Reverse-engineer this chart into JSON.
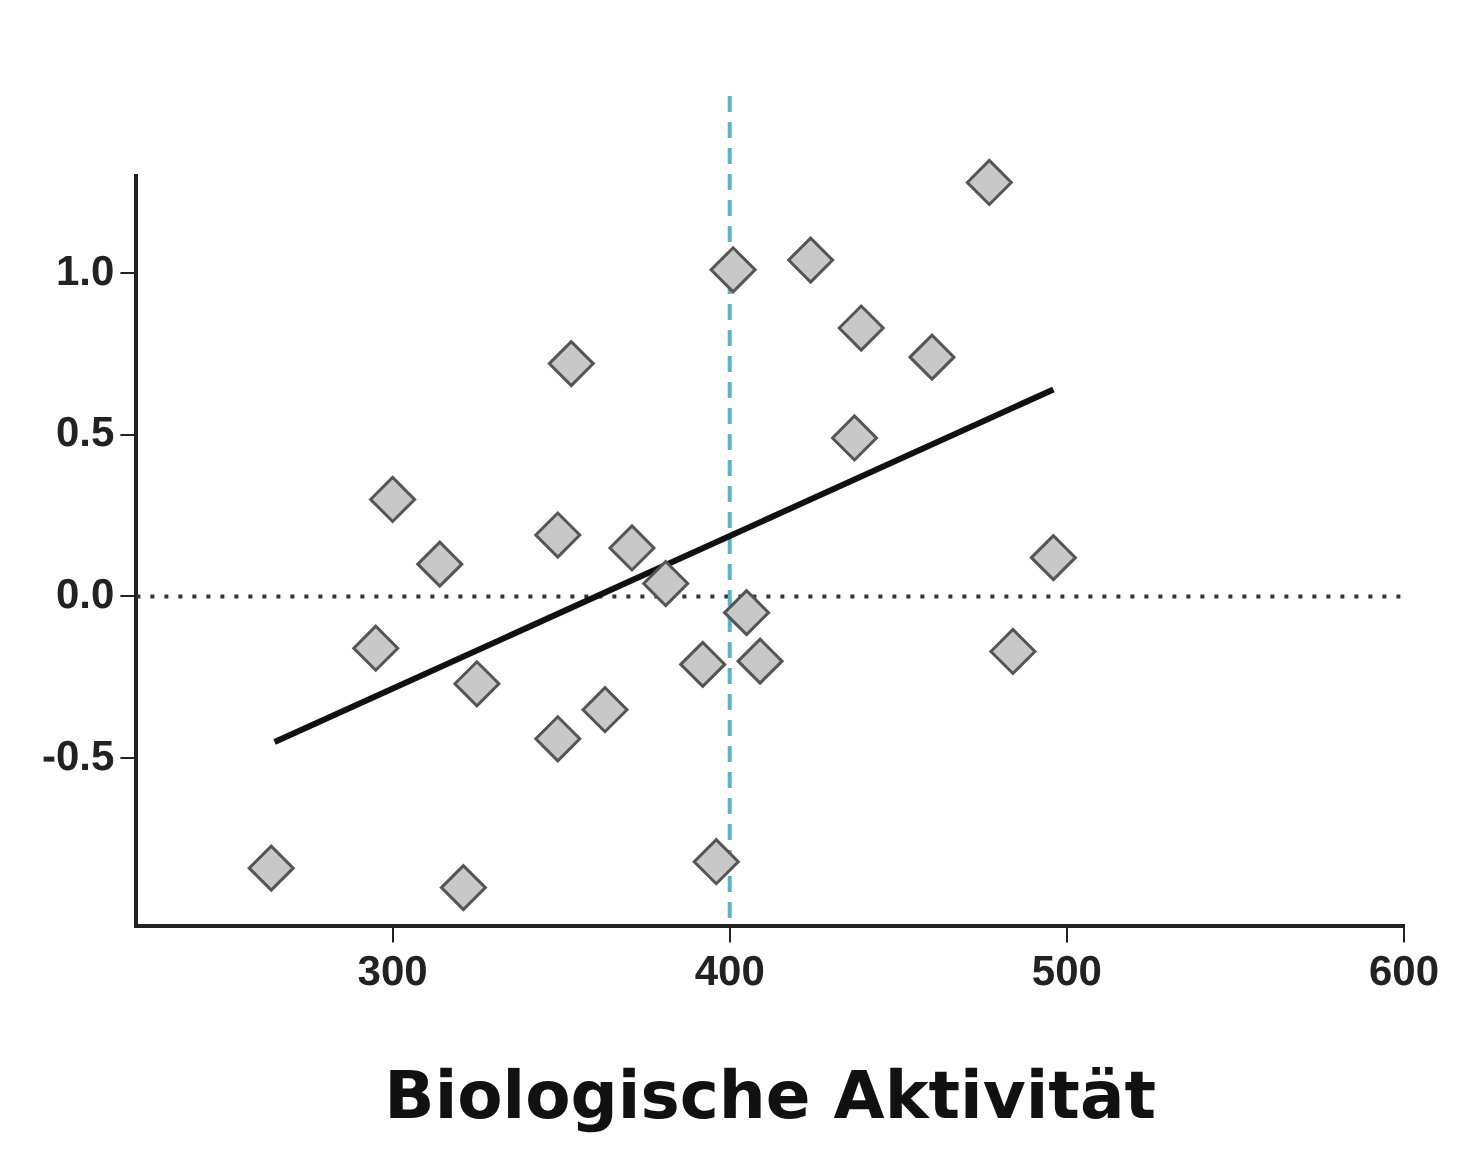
{
  "chart_data": {
    "type": "scatter",
    "xlabel": "Biologische Aktivität",
    "xlim": [
      224,
      600
    ],
    "ylim": [
      -1.02,
      1.3
    ],
    "xticks": [
      300,
      400,
      500,
      600
    ],
    "yticks": [
      {
        "value": -0.5,
        "label": "-0.5"
      },
      {
        "value": 0,
        "label": "0.0"
      },
      {
        "value": 0.5,
        "label": "0.5"
      },
      {
        "value": 1,
        "label": "1.0"
      }
    ],
    "grid": false,
    "legend": false,
    "marker": "diamond",
    "series": [
      {
        "color": "#c8c8c8",
        "x": [
          264,
          321,
          295,
          300,
          314,
          325,
          349,
          349,
          353,
          363,
          371,
          381,
          392,
          396,
          401,
          405,
          409,
          424,
          439,
          437,
          460,
          477,
          484,
          496
        ],
        "values": [
          -0.84,
          -0.9,
          -0.16,
          0.3,
          0.1,
          -0.27,
          0.19,
          -0.44,
          0.72,
          -0.35,
          0.15,
          0.04,
          -0.21,
          -0.82,
          1.01,
          -0.05,
          -0.2,
          1.04,
          0.83,
          0.49,
          0.74,
          1.28,
          -0.17,
          0.12
        ]
      },
      {
        "type": "line",
        "marker": "none",
        "color": "#111111",
        "x": [
          265,
          496
        ],
        "values": [
          -0.45,
          0.64
        ]
      }
    ],
    "ref_lines": [
      {
        "axis": "y",
        "value": 0,
        "color": "#333333",
        "line_style": "dotted"
      },
      {
        "axis": "x",
        "value": 400,
        "color": "#5ab4c8",
        "line_style": "dashed"
      }
    ]
  }
}
